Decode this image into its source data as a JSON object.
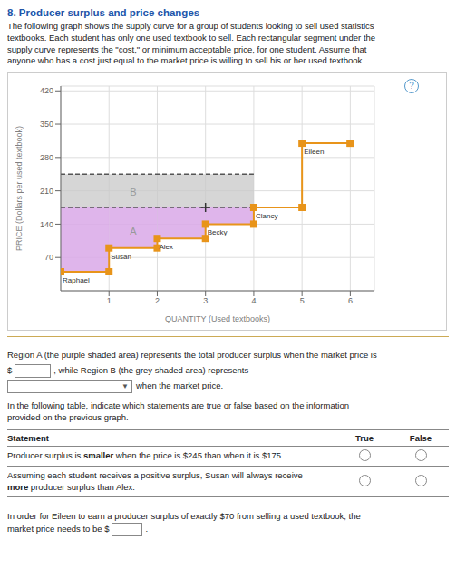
{
  "chart_data": {
    "type": "line",
    "title": "8. Producer surplus and price changes",
    "subtitle": "The following graph shows the supply curve for a group of students looking to sell used statistics\ntextbooks. Each student has only one used textbook to sell. Each rectangular segment under the\nsupply curve represents the \"cost,\" or minimum acceptable price, for one student. Assume that\nanyone who has a cost just equal to the market price is willing to sell his or her used textbook.",
    "x_label": "QUANTITY (Used textbooks)",
    "y_label": "PRICE (Dollars per used textbook)",
    "x": [
      0,
      1,
      2,
      3,
      4,
      5,
      6
    ],
    "series": [
      {
        "values": [
          40,
          90,
          110,
          140,
          175,
          310,
          310
        ],
        "color": "#e8941a",
        "line_style": "step",
        "marker": "square"
      }
    ],
    "xlim": [
      0,
      6.5
    ],
    "ylim": [
      0,
      430
    ],
    "xticks": [
      1,
      2,
      3,
      4,
      5,
      6
    ],
    "yticks": [
      70,
      140,
      210,
      280,
      350,
      420
    ],
    "grid": true,
    "reference_lines": [
      {
        "y": 175,
        "x": [
          0,
          4
        ],
        "color": "#555555",
        "line_style": "dashed"
      },
      {
        "y": 245,
        "x": [
          0,
          4
        ],
        "color": "#555555",
        "line_style": "dashed"
      }
    ],
    "regions": [
      {
        "label": "A",
        "color": "#d9a8e8",
        "x": [
          0,
          4
        ],
        "from": "supply",
        "to": 175,
        "label_at": [
          1.5,
          125
        ]
      },
      {
        "label": "B",
        "color": "#c8c8c8",
        "x": [
          0,
          4
        ],
        "from": 175,
        "to": 245,
        "label_at": [
          1.5,
          208
        ]
      }
    ],
    "marker_points": [
      {
        "x": 3,
        "y": 175,
        "marker": "plus"
      }
    ],
    "annotations": [
      {
        "text": "Raphael",
        "x": 0,
        "y": 40
      },
      {
        "text": "Susan",
        "x": 1,
        "y": 90
      },
      {
        "text": "Alex",
        "x": 2,
        "y": 110
      },
      {
        "text": "Becky",
        "x": 3,
        "y": 140
      },
      {
        "text": "Clancy",
        "x": 4,
        "y": 175
      },
      {
        "text": "Eileen",
        "x": 5,
        "y": 310
      }
    ],
    "help_mark": "?",
    "region_text": [
      "Region A (the purple shaded area) represents the total producer surplus when the market price is",
      "$",
      ", while Region B (the grey shaded area) represents",
      "when the market price",
      "."
    ],
    "dropdown_mark": "▼",
    "table_text": "In the following table, indicate which statements are true or false based on the information\nprovided on the previous graph.",
    "table_header": [
      "Statement",
      "True",
      "False"
    ],
    "statements": [
      {
        "text": "Producer surplus is smaller when the price is $245 than when it is $175.",
        "bold": "smaller"
      },
      {
        "text": "Assuming each student receives a positive surplus, Susan will always receive\nmore producer surplus than Alex.",
        "bold": "more"
      }
    ],
    "footer_text": [
      "In order for Eileen to earn a producer surplus of exactly $70 from selling a used textbook, the\nmarket price needs to be $",
      "."
    ]
  }
}
